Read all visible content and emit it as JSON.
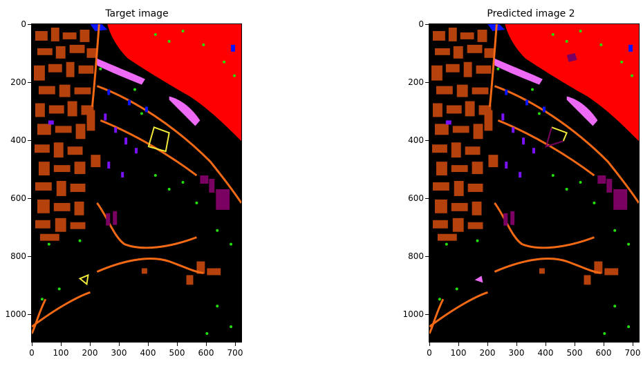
{
  "figure": {
    "left_title": "Target image",
    "right_title": "Predicted image 2"
  },
  "axes": {
    "y_ticks": [
      "0",
      "200",
      "400",
      "600",
      "800",
      "1000"
    ],
    "x_ticks": [
      "0",
      "100",
      "200",
      "300",
      "400",
      "500",
      "600",
      "700"
    ]
  },
  "colors": {
    "background": "#000000",
    "water": "#ff0000",
    "buildings": "#b5420d",
    "roads": "#f46a14",
    "vegetation": "#22e00a",
    "shadow": "#0a14ff",
    "tiles": "#7a12ff",
    "bare_soil": "#7a0062",
    "meadow": "#ec6af4",
    "asphalt": "#f2ea3a"
  }
}
